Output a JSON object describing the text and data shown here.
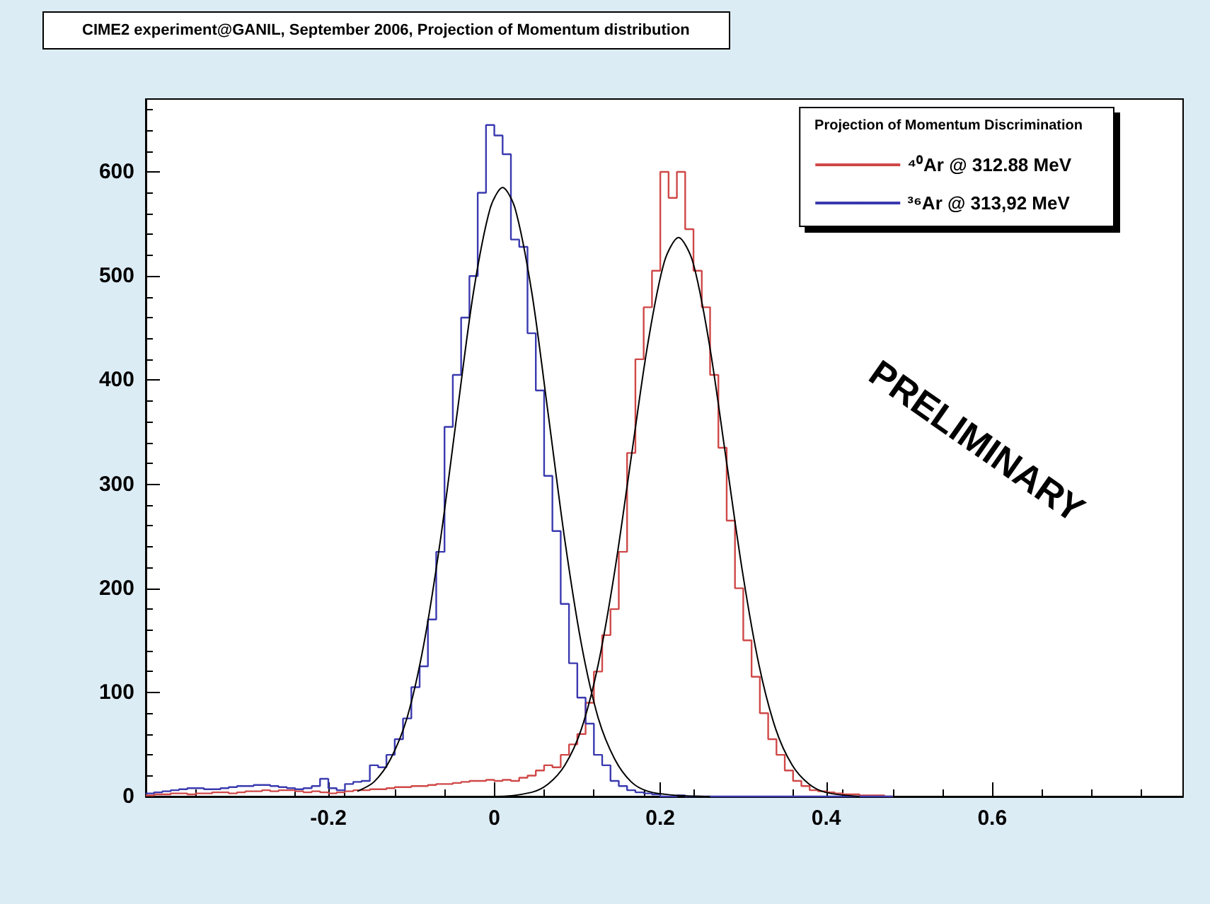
{
  "chart_data": {
    "type": "histogram",
    "title": "CIME2 experiment@GANIL, September 2006, Projection of Momentum distribution",
    "legend_title": "Projection of Momentum Discrimination",
    "legend": "top right",
    "annotations": [
      "PRELIMINARY"
    ],
    "xlim": [
      -0.42,
      0.83
    ],
    "xticks": [
      -0.2,
      0,
      0.2,
      0.4,
      0.6
    ],
    "ylim": [
      0,
      670
    ],
    "yticks": [
      0,
      100,
      200,
      300,
      400,
      500,
      600
    ],
    "bins": [
      -0.42,
      -0.41,
      -0.4,
      -0.39,
      -0.38,
      -0.37,
      -0.36,
      -0.35,
      -0.34,
      -0.33,
      -0.32,
      -0.31,
      -0.3,
      -0.29,
      -0.28,
      -0.27,
      -0.26,
      -0.25,
      -0.24,
      -0.23,
      -0.22,
      -0.21,
      -0.2,
      -0.19,
      -0.18,
      -0.17,
      -0.16,
      -0.15,
      -0.14,
      -0.13,
      -0.12,
      -0.11,
      -0.1,
      -0.09,
      -0.08,
      -0.07,
      -0.06,
      -0.05,
      -0.04,
      -0.03,
      -0.02,
      -0.01,
      0,
      0.01,
      0.02,
      0.03,
      0.04,
      0.05,
      0.06,
      0.07,
      0.08,
      0.09,
      0.1,
      0.11,
      0.12,
      0.13,
      0.14,
      0.15,
      0.16,
      0.17,
      0.18,
      0.19,
      0.2,
      0.21,
      0.22,
      0.23,
      0.24,
      0.25,
      0.26,
      0.27,
      0.28,
      0.29,
      0.3,
      0.31,
      0.32,
      0.33,
      0.34,
      0.35,
      0.36,
      0.37,
      0.38,
      0.39,
      0.4,
      0.41,
      0.42,
      0.43,
      0.44,
      0.45,
      0.46,
      0.47,
      0.48
    ],
    "series": [
      {
        "name": "⁴⁰Ar @ 312.88 MeV",
        "color": "#d04848",
        "values": [
          1,
          2,
          2,
          3,
          3,
          2,
          3,
          3,
          4,
          4,
          3,
          4,
          5,
          5,
          6,
          5,
          6,
          6,
          5,
          4,
          5,
          4,
          3,
          4,
          5,
          6,
          6,
          7,
          7,
          8,
          9,
          9,
          10,
          10,
          11,
          12,
          12,
          13,
          14,
          15,
          15,
          16,
          15,
          16,
          15,
          18,
          20,
          25,
          30,
          28,
          40,
          50,
          60,
          90,
          120,
          155,
          180,
          235,
          330,
          420,
          470,
          505,
          600,
          575,
          600,
          545,
          505,
          470,
          405,
          335,
          265,
          200,
          150,
          115,
          80,
          55,
          40,
          25,
          15,
          10,
          6,
          5,
          4,
          3,
          2,
          2,
          1,
          1,
          1,
          0
        ]
      },
      {
        "name": "³⁶Ar @ 313,92 MeV",
        "color": "#3a3ab0",
        "values": [
          3,
          4,
          5,
          6,
          7,
          8,
          8,
          7,
          7,
          8,
          9,
          10,
          10,
          11,
          11,
          10,
          9,
          8,
          7,
          8,
          10,
          17,
          8,
          6,
          12,
          14,
          15,
          30,
          28,
          40,
          55,
          75,
          105,
          125,
          170,
          235,
          355,
          405,
          460,
          500,
          580,
          645,
          635,
          617,
          535,
          528,
          445,
          390,
          308,
          255,
          185,
          128,
          95,
          70,
          40,
          30,
          15,
          10,
          6,
          4,
          3,
          2,
          0,
          0,
          1,
          0,
          0,
          0,
          0,
          0,
          0,
          0,
          0,
          0,
          0,
          0,
          0,
          0,
          0,
          0,
          0,
          0,
          0,
          0,
          0,
          0,
          0,
          0,
          0,
          0
        ]
      },
      {
        "type": "line",
        "color": "#000000",
        "x": [
          -0.165,
          -0.145,
          -0.125,
          -0.105,
          -0.085,
          -0.065,
          -0.045,
          -0.025,
          -0.005,
          0.01,
          0.025,
          0.045,
          0.065,
          0.085,
          0.105,
          0.125,
          0.145,
          0.165,
          0.185,
          0.22,
          0.26
        ],
        "values": [
          5,
          14,
          36,
          76,
          146,
          246,
          367,
          485,
          565,
          585,
          565,
          485,
          367,
          246,
          146,
          76,
          36,
          14,
          5,
          1,
          0
        ]
      },
      {
        "type": "line",
        "color": "#000000",
        "x": [
          -0.05,
          0,
          0.045,
          0.065,
          0.085,
          0.105,
          0.125,
          0.145,
          0.165,
          0.185,
          0.205,
          0.222,
          0.239,
          0.259,
          0.279,
          0.299,
          0.319,
          0.339,
          0.359,
          0.379,
          0.399,
          0.44
        ],
        "values": [
          0,
          0,
          4,
          12,
          30,
          65,
          126,
          216,
          326,
          435,
          514,
          537,
          514,
          435,
          326,
          216,
          126,
          65,
          30,
          12,
          4,
          0
        ]
      }
    ]
  }
}
